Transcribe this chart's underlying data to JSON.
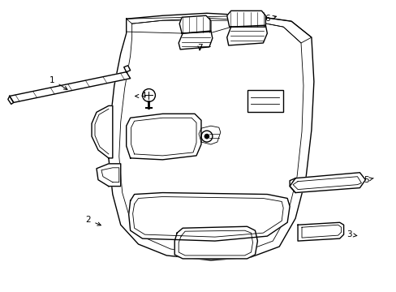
{
  "background_color": "#ffffff",
  "line_color": "#000000",
  "lw": 1.0,
  "tlw": 0.6,
  "figsize": [
    4.89,
    3.6
  ],
  "dpi": 100,
  "label_fs": 7.5
}
